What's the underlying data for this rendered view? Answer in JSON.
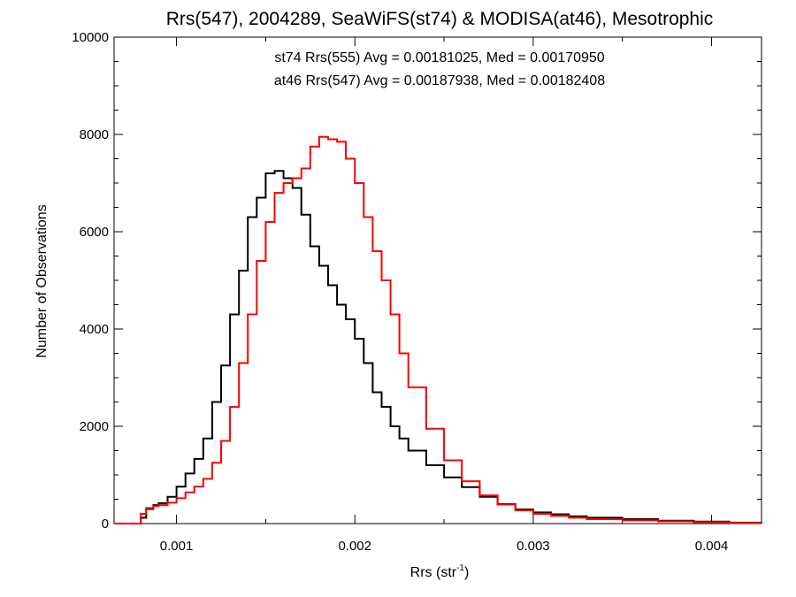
{
  "chart_data": {
    "type": "line",
    "title": "Rrs(547), 2004289, SeaWiFS(st74) & MODISA(at46), Mesotrophic",
    "xlabel": "Rrs (str",
    "xlabel_sup": "-1",
    "xlabel_close": ")",
    "ylabel": "Number of Observations",
    "xlim": [
      0.00065,
      0.00428
    ],
    "ylim": [
      0,
      10000
    ],
    "x_ticks": [
      0.001,
      0.002,
      0.003,
      0.004
    ],
    "x_tick_labels": [
      "0.001",
      "0.002",
      "0.003",
      "0.004"
    ],
    "y_ticks": [
      0,
      2000,
      4000,
      6000,
      8000,
      10000
    ],
    "y_tick_labels": [
      "0",
      "2000",
      "4000",
      "6000",
      "8000",
      "10000"
    ],
    "grid": false,
    "step": true,
    "series": [
      {
        "name": "st74 Rrs(555)",
        "color": "#000000",
        "label": "st74 Rrs(555) Avg = 0.00181025, Med = 0.00170950",
        "x": [
          0.00065,
          0.00078,
          0.0008,
          0.00083,
          0.00087,
          0.0009,
          0.00095,
          0.001,
          0.00105,
          0.0011,
          0.00115,
          0.0012,
          0.00125,
          0.0013,
          0.00135,
          0.0014,
          0.00145,
          0.0015,
          0.00155,
          0.0016,
          0.00165,
          0.0017,
          0.00175,
          0.0018,
          0.00185,
          0.0019,
          0.00195,
          0.002,
          0.00205,
          0.0021,
          0.00215,
          0.0022,
          0.00225,
          0.0023,
          0.0024,
          0.0025,
          0.0026,
          0.0027,
          0.0028,
          0.0029,
          0.003,
          0.0031,
          0.0032,
          0.0033,
          0.0035,
          0.0037,
          0.0039,
          0.0041,
          0.00428
        ],
        "y": [
          0,
          0,
          120,
          300,
          380,
          420,
          550,
          760,
          1030,
          1330,
          1750,
          2500,
          3250,
          4300,
          5200,
          6300,
          6700,
          7200,
          7250,
          7100,
          6900,
          6350,
          5700,
          5300,
          4900,
          4500,
          4200,
          3800,
          3300,
          2700,
          2400,
          2000,
          1750,
          1500,
          1200,
          950,
          750,
          550,
          400,
          290,
          230,
          190,
          150,
          120,
          90,
          60,
          40,
          20,
          10
        ]
      },
      {
        "name": "at46 Rrs(547)",
        "color": "#ff0000",
        "label": "at46 Rrs(547) Avg = 0.00187938, Med = 0.00182408",
        "x": [
          0.00065,
          0.00078,
          0.0008,
          0.00083,
          0.00087,
          0.0009,
          0.00095,
          0.001,
          0.00105,
          0.0011,
          0.00115,
          0.0012,
          0.00125,
          0.0013,
          0.00135,
          0.0014,
          0.00145,
          0.0015,
          0.00155,
          0.0016,
          0.00165,
          0.0017,
          0.00175,
          0.0018,
          0.00185,
          0.0019,
          0.00195,
          0.002,
          0.00205,
          0.0021,
          0.00215,
          0.0022,
          0.00225,
          0.0023,
          0.0024,
          0.0025,
          0.0026,
          0.0027,
          0.0028,
          0.0029,
          0.003,
          0.0031,
          0.0032,
          0.0033,
          0.0035,
          0.0037,
          0.0039,
          0.0041,
          0.00428
        ],
        "y": [
          0,
          0,
          200,
          320,
          360,
          380,
          430,
          520,
          640,
          760,
          920,
          1250,
          1700,
          2400,
          3300,
          4300,
          5400,
          6200,
          6800,
          7000,
          7100,
          7300,
          7750,
          7950,
          7900,
          7850,
          7500,
          7000,
          6300,
          5600,
          5000,
          4300,
          3500,
          2800,
          1950,
          1300,
          870,
          580,
          390,
          270,
          200,
          160,
          120,
          90,
          65,
          45,
          30,
          15,
          8
        ]
      }
    ]
  }
}
